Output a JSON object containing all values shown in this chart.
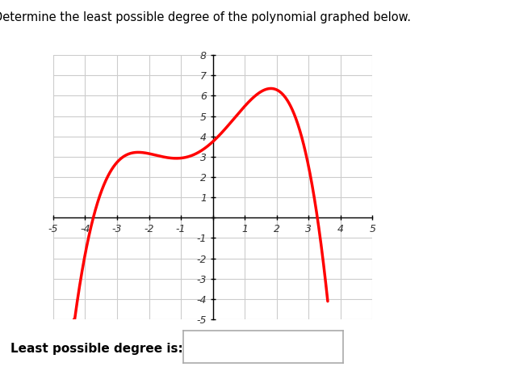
{
  "title": "Determine the least possible degree of the polynomial graphed below.",
  "xlim": [
    -5,
    5
  ],
  "ylim": [
    -5,
    8
  ],
  "xticks": [
    -5,
    -4,
    -3,
    -2,
    -1,
    0,
    1,
    2,
    3,
    4,
    5
  ],
  "yticks": [
    -5,
    -4,
    -3,
    -2,
    -1,
    0,
    1,
    2,
    3,
    4,
    5,
    6,
    7,
    8
  ],
  "curve_color": "#ff0000",
  "curve_linewidth": 2.5,
  "grid_color": "#cccccc",
  "background_color": "#ffffff",
  "label_text": "Least possible degree is:",
  "x_start": -4.35,
  "x_end": 3.6,
  "local_max_x": -3.0,
  "local_max_y": 3.2,
  "local_min_x": -0.5,
  "local_min_y": 3.0,
  "global_max_x": 2.0,
  "global_max_y": 6.5
}
